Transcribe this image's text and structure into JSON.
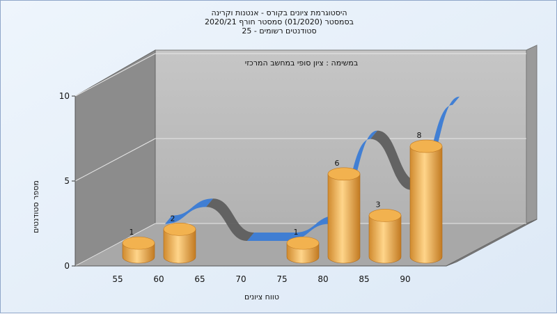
{
  "titles": [
    "היסטוגרמת ציונים בקורס - אנטנות וקרינה",
    "בסמסטר  (01/2020)  סמסטר חורף  2020/21",
    "סטודנטים רשומים - 25"
  ],
  "chart_data": {
    "type": "bar",
    "title": "היסטוגרמת ציונים בקורס - אנטנות וקרינה",
    "subtitle": "בסמסטר  (01/2020)  סמסטר חורף  2020/21 | סטודנטים רשומים - 25",
    "annotation": "במשימה : ציון סופי במחשב המרכזי",
    "xlabel": "טווח ציונים",
    "ylabel": "מספר סטודנטים",
    "categories": [
      "55",
      "60",
      "65",
      "70",
      "75",
      "80",
      "85",
      "90"
    ],
    "series": [
      {
        "name": "",
        "values": [
          1,
          2,
          0,
          0,
          1,
          6,
          3,
          8
        ]
      }
    ],
    "ylim": [
      0,
      10
    ],
    "yticks": [
      0,
      5,
      10
    ],
    "grid": true,
    "legend": "none",
    "colors": {
      "bar": "#e8a84a",
      "ribbon": "#3a7bd5",
      "ribbon_dark": "#5e5e5e",
      "wall": "#b9b9b9",
      "side_wall": "#8a8a8a"
    }
  }
}
